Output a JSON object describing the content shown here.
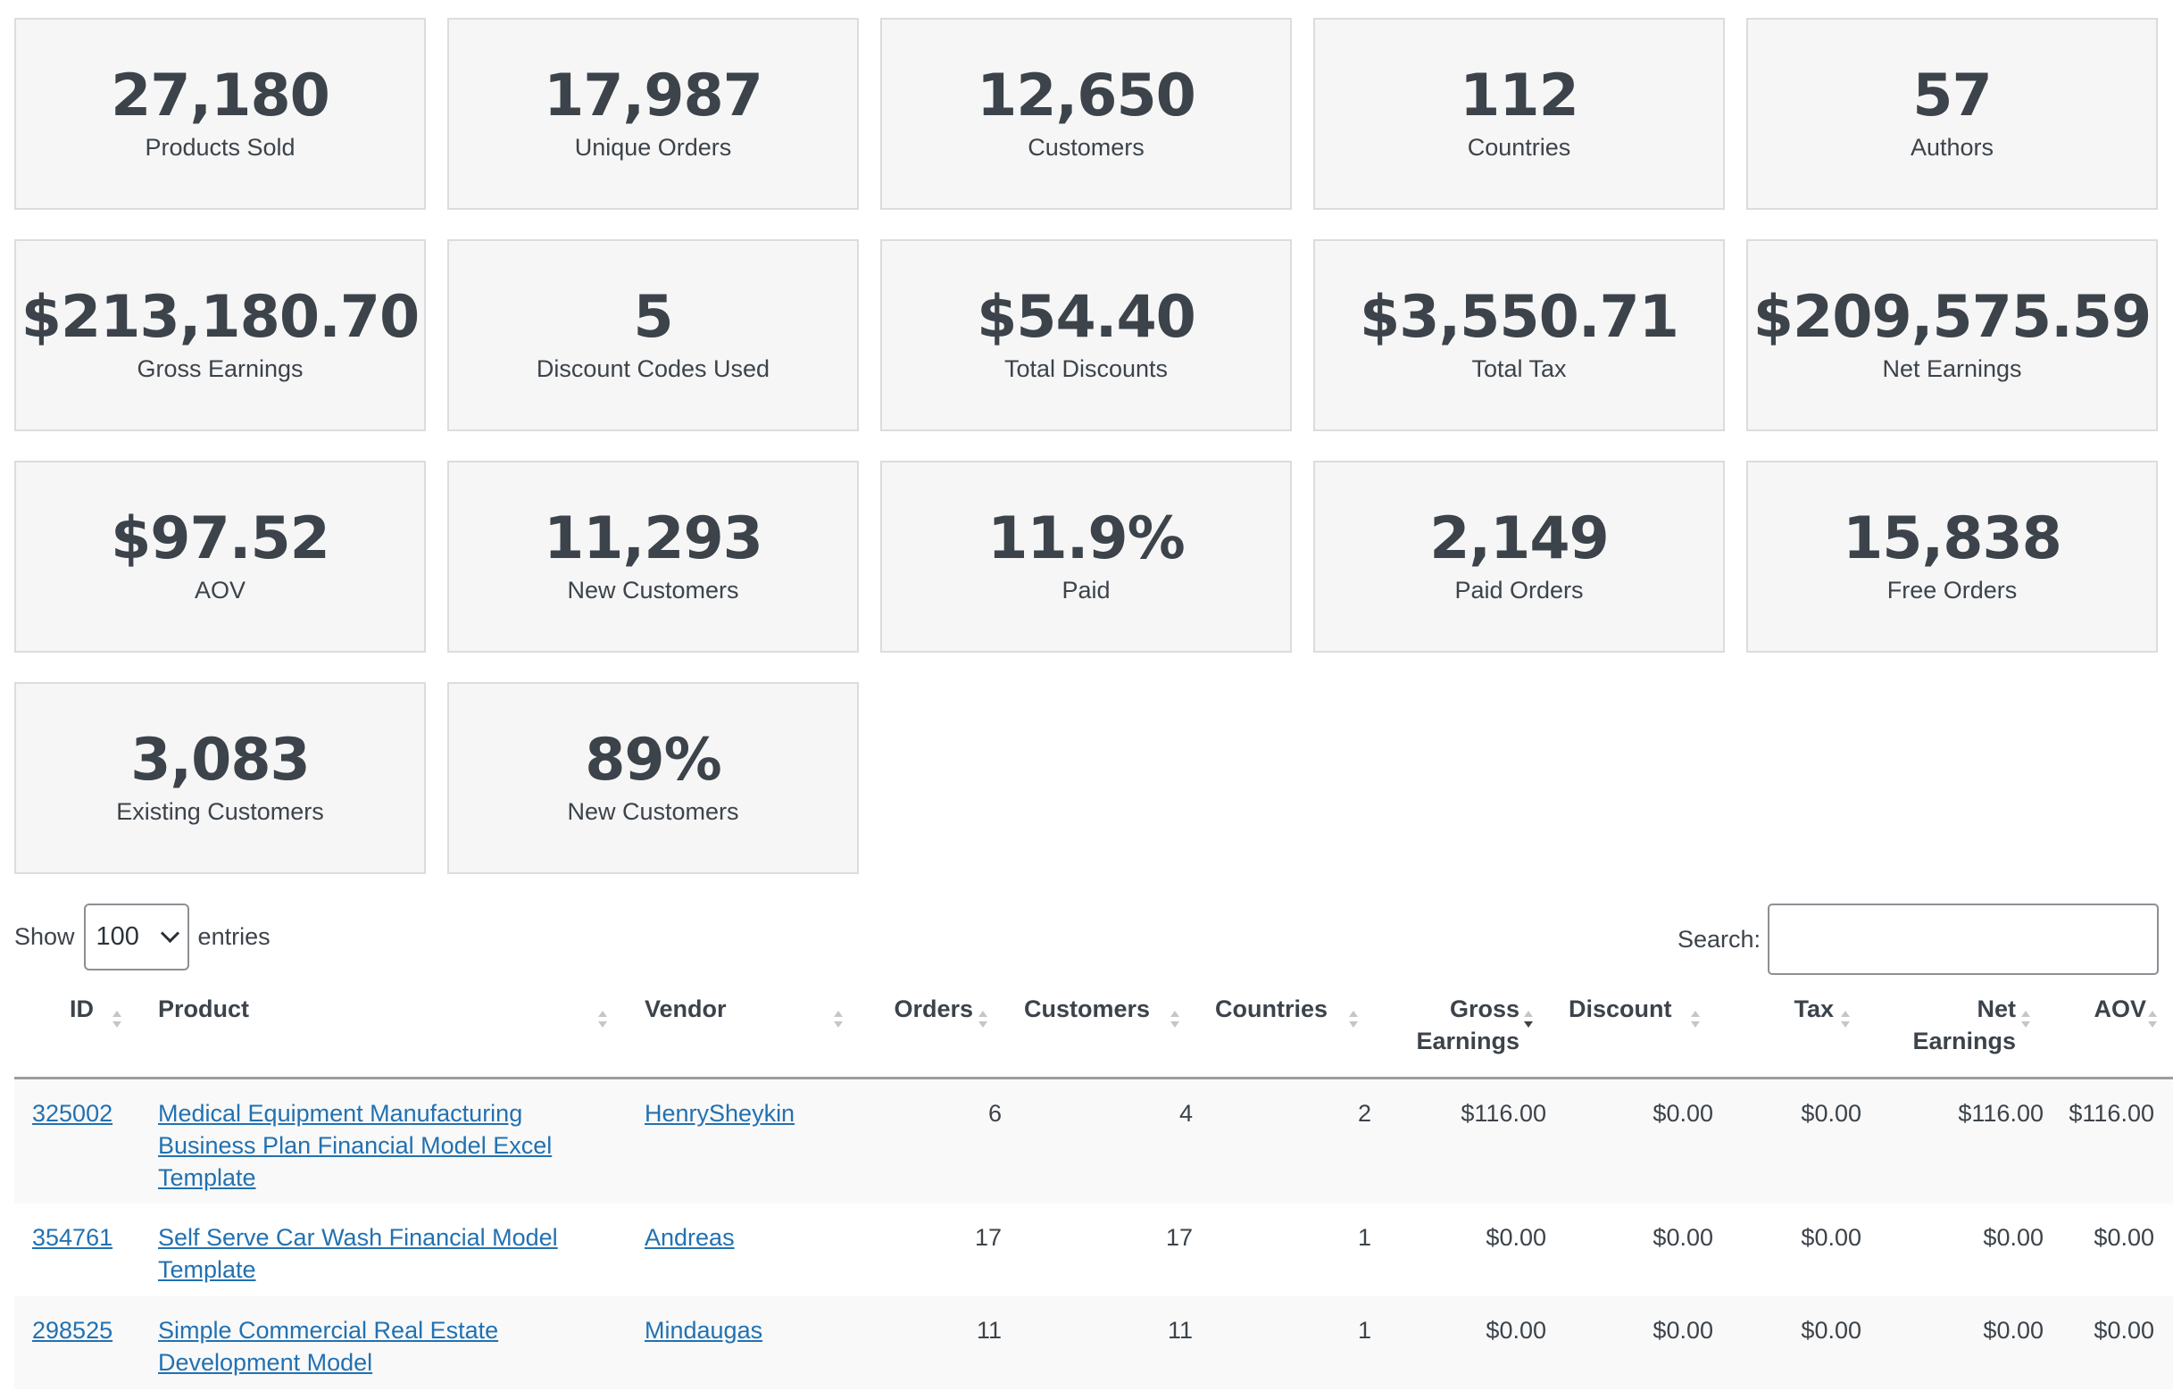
{
  "stats": [
    {
      "value": "27,180",
      "label": "Products Sold"
    },
    {
      "value": "17,987",
      "label": "Unique Orders"
    },
    {
      "value": "12,650",
      "label": "Customers"
    },
    {
      "value": "112",
      "label": "Countries"
    },
    {
      "value": "57",
      "label": "Authors"
    },
    {
      "value": "$213,180.70",
      "label": "Gross Earnings"
    },
    {
      "value": "5",
      "label": "Discount Codes Used"
    },
    {
      "value": "$54.40",
      "label": "Total Discounts"
    },
    {
      "value": "$3,550.71",
      "label": "Total Tax"
    },
    {
      "value": "$209,575.59",
      "label": "Net Earnings"
    },
    {
      "value": "$97.52",
      "label": "AOV"
    },
    {
      "value": "11,293",
      "label": "New Customers"
    },
    {
      "value": "11.9%",
      "label": "Paid"
    },
    {
      "value": "2,149",
      "label": "Paid Orders"
    },
    {
      "value": "15,838",
      "label": "Free Orders"
    },
    {
      "value": "3,083",
      "label": "Existing Customers"
    },
    {
      "value": "89%",
      "label": "New Customers"
    }
  ],
  "controls": {
    "show_label": "Show",
    "entries_value": "100",
    "entries_label": "entries",
    "search_label": "Search:",
    "search_value": ""
  },
  "table": {
    "columns": {
      "id": "ID",
      "product": "Product",
      "vendor": "Vendor",
      "orders": "Orders",
      "customers": "Customers",
      "countries": "Countries",
      "gross_1": "Gross",
      "gross_2": "Earnings",
      "discount": "Discount",
      "tax": "Tax",
      "net_1": "Net",
      "net_2": "Earnings",
      "aov": "AOV"
    },
    "rows": [
      {
        "id": "325002",
        "product": [
          "Medical Equipment Manufacturing",
          "Business Plan Financial Model Excel",
          "Template"
        ],
        "vendor": "HenrySheykin",
        "orders": "6",
        "customers": "4",
        "countries": "2",
        "gross": "$116.00",
        "discount": "$0.00",
        "tax": "$0.00",
        "net": "$116.00",
        "aov": "$116.00"
      },
      {
        "id": "354761",
        "product": [
          "Self Serve Car Wash Financial Model",
          "Template"
        ],
        "vendor": "Andreas",
        "orders": "17",
        "customers": "17",
        "countries": "1",
        "gross": "$0.00",
        "discount": "$0.00",
        "tax": "$0.00",
        "net": "$0.00",
        "aov": "$0.00"
      },
      {
        "id": "298525",
        "product": [
          "Simple Commercial Real Estate",
          "Development Model"
        ],
        "vendor": "Mindaugas",
        "orders": "11",
        "customers": "11",
        "countries": "1",
        "gross": "$0.00",
        "discount": "$0.00",
        "tax": "$0.00",
        "net": "$0.00",
        "aov": "$0.00"
      }
    ]
  }
}
